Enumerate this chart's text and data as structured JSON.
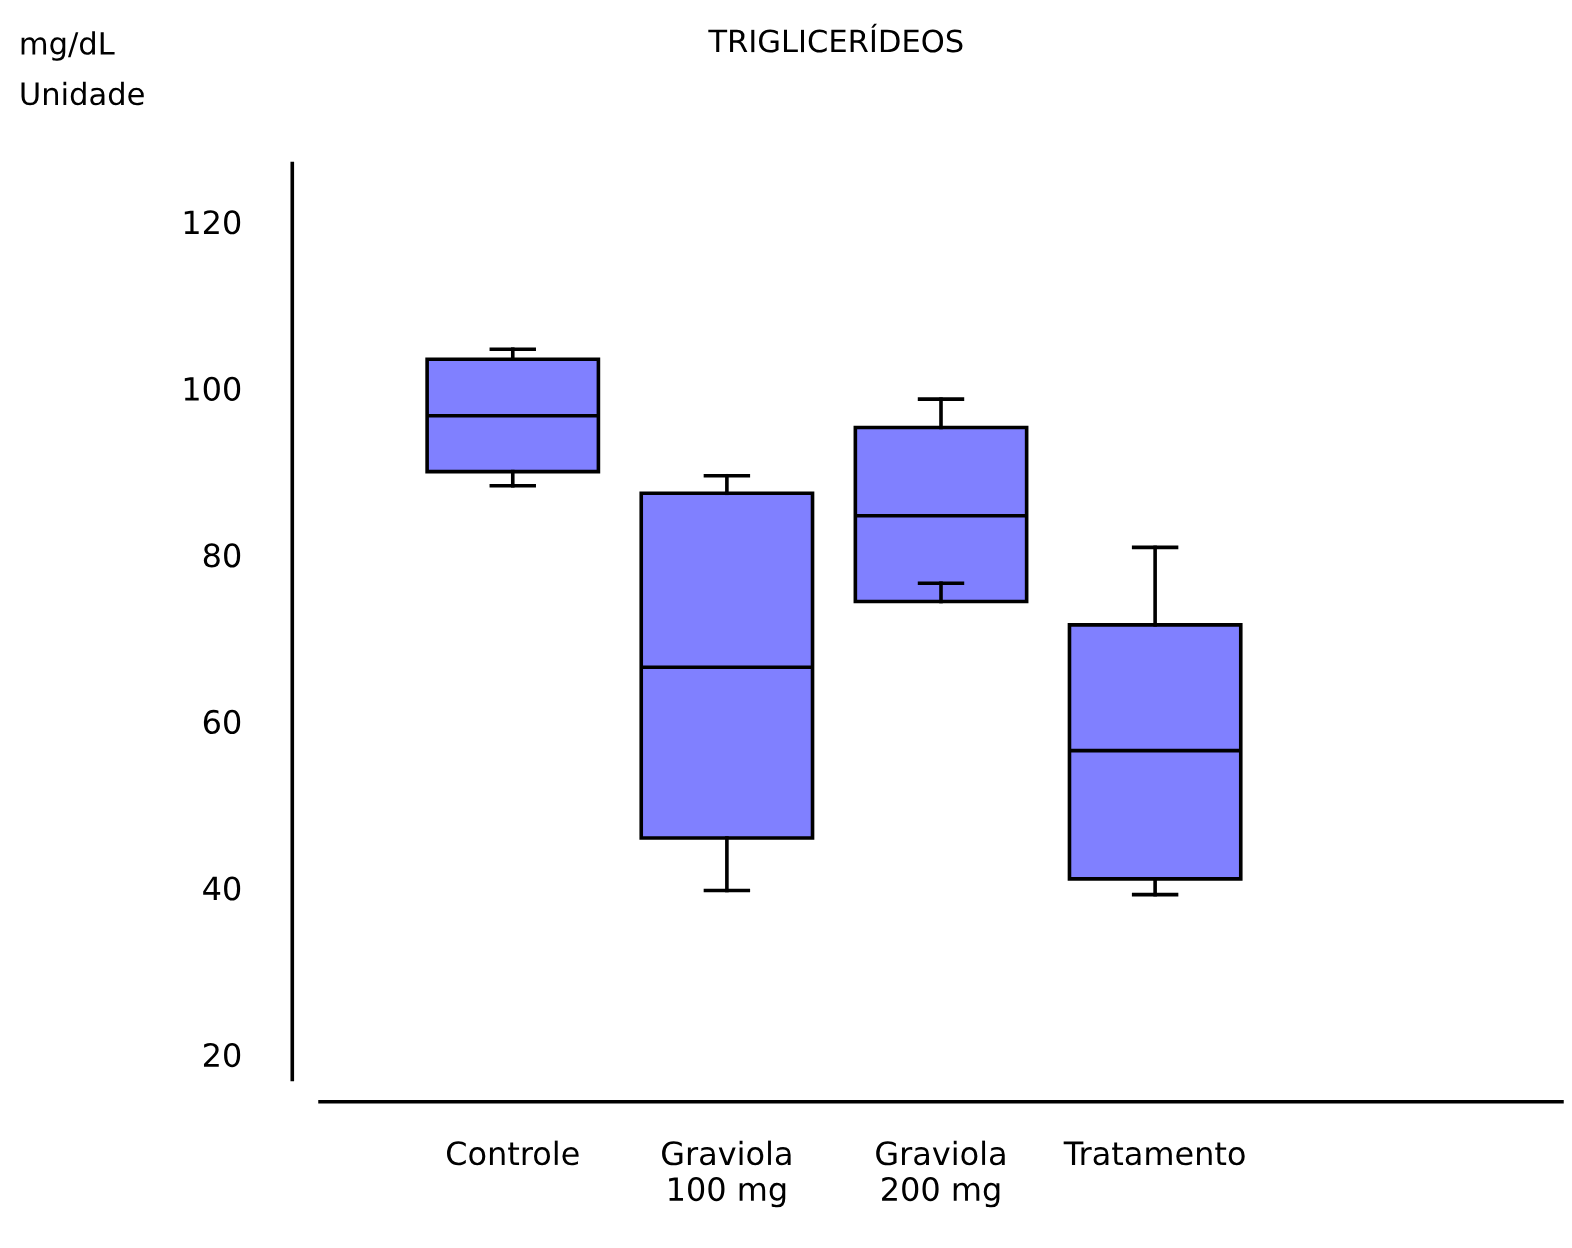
{
  "chart_data": {
    "type": "box",
    "title": "TRIGLICERÍDEOS",
    "ylabel": "mg/dL\nUnidade",
    "categories": [
      "Controle",
      "Graviola\n100 mg",
      "Graviola\n200 mg",
      "Tratamento"
    ],
    "boxes": [
      {
        "low": 88.3,
        "q1": 90,
        "median": 96.7,
        "q3": 103.5,
        "high": 104.7
      },
      {
        "low": 39.7,
        "q1": 46,
        "median": 66.5,
        "q3": 87.4,
        "high": 89.5
      },
      {
        "low": 76.6,
        "q1": 74.4,
        "median": 84.7,
        "q3": 95.3,
        "high": 98.7
      },
      {
        "low": 39.2,
        "q1": 41.1,
        "median": 56.5,
        "q3": 71.6,
        "high": 80.9
      }
    ],
    "color": "#8080ff",
    "ylim": [
      17,
      127
    ],
    "yticks": [
      20,
      40,
      60,
      80,
      100,
      120
    ],
    "grid": false
  }
}
